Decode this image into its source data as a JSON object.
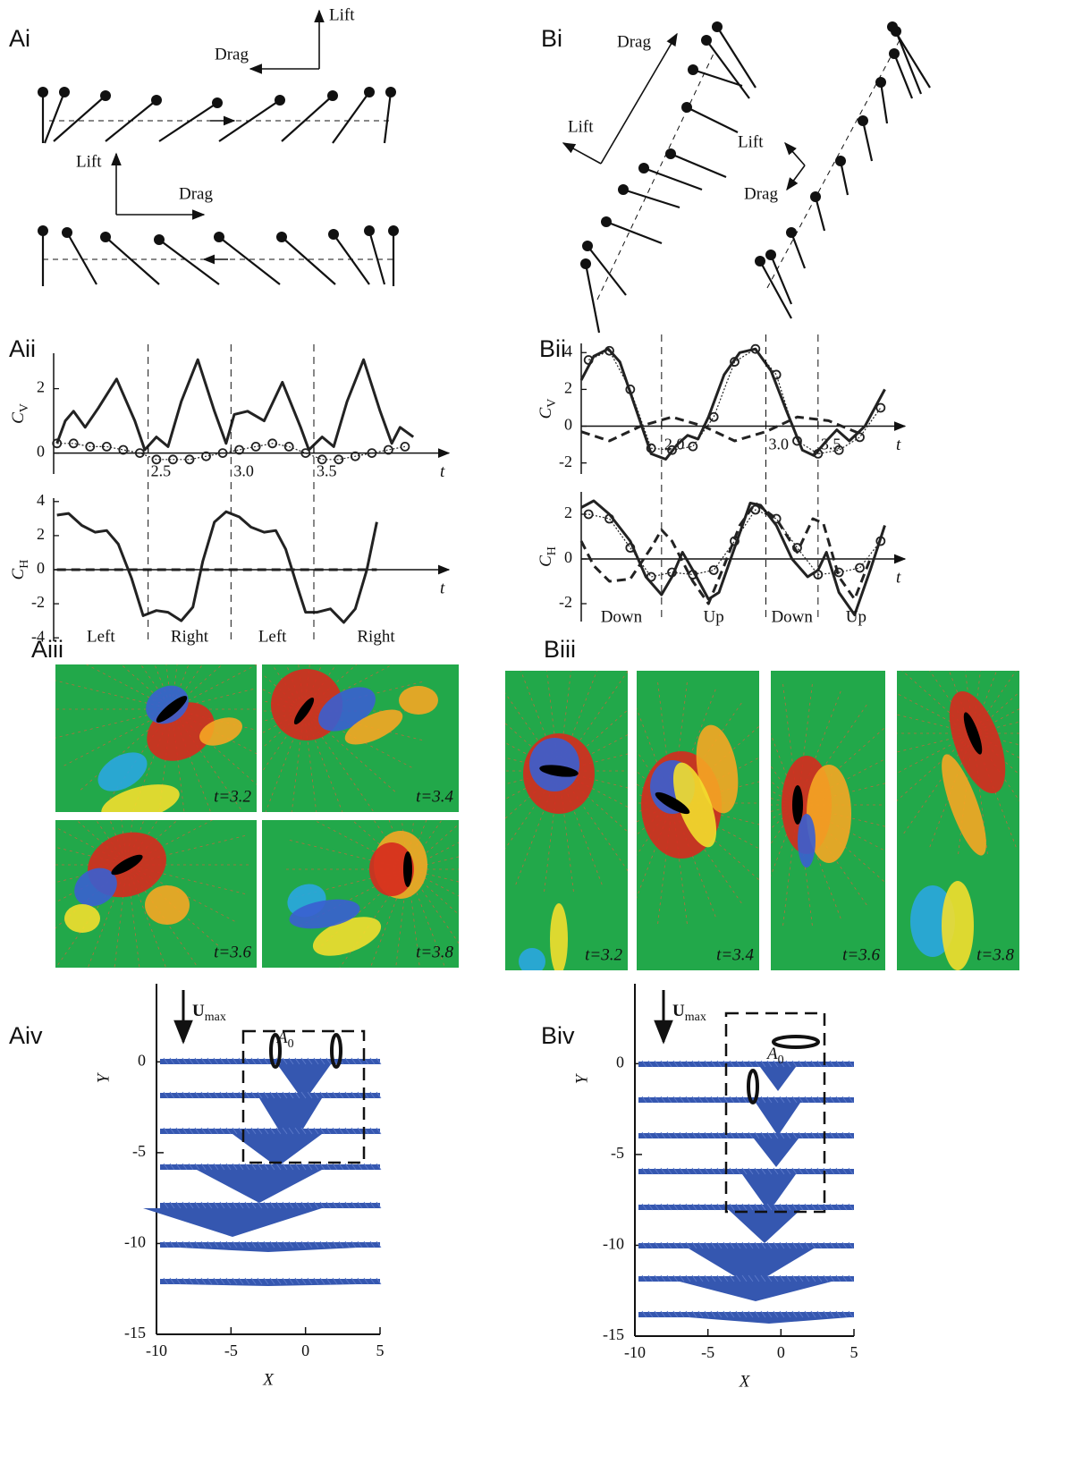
{
  "panel_labels": [
    "Ai",
    "Bi",
    "Aii",
    "Bii",
    "Aiii",
    "Biii",
    "Aiv",
    "Biv"
  ],
  "diagrams": {
    "Ai": [
      "Lift",
      "Drag",
      "Lift",
      "Drag"
    ],
    "Bi": [
      "Drag",
      "Lift",
      "Lift",
      "Drag"
    ]
  },
  "snapshots": {
    "Aiii": [
      "t=3.2",
      "t=3.4",
      "t=3.6",
      "t=3.8"
    ],
    "Biii": [
      "t=3.2",
      "t=3.4",
      "t=3.6",
      "t=3.8"
    ]
  },
  "chart_data": [
    {
      "type": "line",
      "ylabel": {
        "text": "C",
        "sub": "V"
      },
      "xlabel": "t",
      "xlim": [
        1.93,
        4.25
      ],
      "ylim": [
        -0.65,
        3.1
      ],
      "xticks": [
        2.5,
        {
          "value": 3,
          "label": "3.0"
        },
        3.5
      ],
      "yticks": [
        0,
        2
      ],
      "series": [
        {
          "color": "#222",
          "style": "solid",
          "x": [
            1.95,
            2.0,
            2.05,
            2.12,
            2.2,
            2.31,
            2.42,
            2.48,
            2.55,
            2.62,
            2.7,
            2.8,
            2.9,
            2.97,
            3.02,
            3.1,
            3.2,
            3.31,
            3.42,
            3.47,
            3.55,
            3.62,
            3.7,
            3.8,
            3.9,
            3.97,
            4.02,
            4.1
          ],
          "values": [
            0.3,
            1.0,
            1.3,
            0.8,
            1.4,
            2.3,
            1.0,
            0.1,
            0.5,
            0.2,
            1.6,
            2.9,
            1.3,
            0.3,
            1.2,
            1.3,
            1.0,
            2.2,
            0.8,
            0.1,
            0.5,
            0.2,
            1.6,
            2.9,
            1.3,
            0.3,
            0.8,
            0.5
          ]
        },
        {
          "color": "#222",
          "style": "circles",
          "x": [
            1.95,
            2.05,
            2.15,
            2.25,
            2.35,
            2.45,
            2.55,
            2.65,
            2.75,
            2.85,
            2.95,
            3.05,
            3.15,
            3.25,
            3.35,
            3.45,
            3.55,
            3.65,
            3.75,
            3.85,
            3.95,
            4.05
          ],
          "values": [
            0.3,
            0.3,
            0.2,
            0.2,
            0.1,
            0.0,
            -0.2,
            -0.2,
            -0.2,
            -0.1,
            0.0,
            0.1,
            0.2,
            0.3,
            0.2,
            0.0,
            -0.2,
            -0.2,
            -0.1,
            0.0,
            0.1,
            0.2
          ]
        }
      ]
    },
    {
      "type": "line",
      "ylabel": {
        "text": "C",
        "sub": "H"
      },
      "xlabel": "t",
      "xlim": [
        1.93,
        4.25
      ],
      "ylim": [
        -4.2,
        4.2
      ],
      "yticks": [
        -4,
        -2,
        0,
        2,
        4
      ],
      "regions": [
        "Left",
        "Right",
        "Left",
        "Right"
      ],
      "series": [
        {
          "color": "#222",
          "style": "solid",
          "x": [
            1.95,
            2.02,
            2.1,
            2.18,
            2.25,
            2.32,
            2.4,
            2.47,
            2.55,
            2.62,
            2.7,
            2.77,
            2.83,
            2.9,
            2.97,
            3.05,
            3.12,
            3.2,
            3.27,
            3.33,
            3.4,
            3.45,
            3.52,
            3.6,
            3.68,
            3.75,
            3.82,
            3.88
          ],
          "values": [
            3.2,
            3.3,
            2.6,
            2.2,
            2.3,
            1.5,
            -0.5,
            -2.7,
            -2.4,
            -2.5,
            -3.0,
            -2.2,
            0.5,
            2.8,
            3.4,
            3.1,
            2.5,
            2.2,
            2.3,
            1.2,
            -1.0,
            -2.5,
            -2.5,
            -2.3,
            -3.1,
            -2.3,
            0.0,
            2.8
          ]
        },
        {
          "color": "#222",
          "style": "dashed",
          "x": [
            1.95,
            2.5,
            3.0,
            3.5,
            3.88
          ],
          "values": [
            0,
            0,
            0,
            0,
            0
          ]
        }
      ]
    },
    {
      "type": "line",
      "ylabel": {
        "text": "C",
        "sub": "V"
      },
      "xlabel": "t",
      "xlim": [
        1.23,
        4.23
      ],
      "ylim": [
        -2.6,
        4.5
      ],
      "xticks": [
        {
          "value": 2,
          "label": "2.0"
        },
        {
          "value": 3,
          "label": "3.0"
        },
        3.5
      ],
      "yticks": [
        -2,
        0,
        2,
        4
      ],
      "series": [
        {
          "color": "#222",
          "style": "solid",
          "x": [
            1.23,
            1.35,
            1.49,
            1.6,
            1.75,
            1.9,
            2.04,
            2.15,
            2.25,
            2.35,
            2.45,
            2.6,
            2.75,
            2.9,
            3.05,
            3.2,
            3.35,
            3.46,
            3.58,
            3.68,
            3.8,
            3.95,
            4.14
          ],
          "values": [
            2.5,
            3.8,
            4.2,
            3.5,
            1.0,
            -1.5,
            -1.8,
            -1.0,
            -0.5,
            -0.7,
            0.5,
            2.8,
            4.0,
            4.2,
            3.0,
            0.8,
            -1.3,
            -1.6,
            -0.8,
            -0.2,
            -0.8,
            0.0,
            2.0
          ]
        },
        {
          "color": "#222",
          "style": "dashed",
          "x": [
            1.23,
            1.5,
            1.8,
            2.1,
            2.4,
            2.7,
            3.0,
            3.3,
            3.6,
            3.9
          ],
          "values": [
            -0.3,
            -0.8,
            0.0,
            0.5,
            0.0,
            -0.8,
            -0.3,
            0.5,
            0.3,
            -0.4
          ]
        },
        {
          "color": "#222",
          "style": "circles",
          "x": [
            1.3,
            1.5,
            1.7,
            1.9,
            2.1,
            2.3,
            2.5,
            2.7,
            2.9,
            3.1,
            3.3,
            3.5,
            3.7,
            3.9,
            4.1
          ],
          "values": [
            3.6,
            4.1,
            2.0,
            -1.2,
            -1.3,
            -1.1,
            0.5,
            3.5,
            4.2,
            2.8,
            -0.8,
            -1.5,
            -1.3,
            -0.6,
            1.0
          ]
        }
      ]
    },
    {
      "type": "line",
      "ylabel": {
        "text": "C",
        "sub": "H"
      },
      "xlabel": "t",
      "xlim": [
        1.23,
        4.23
      ],
      "ylim": [
        -2.8,
        3.0
      ],
      "yticks": [
        -2,
        0,
        2
      ],
      "regions": [
        "Down",
        "Up",
        "Down",
        "Up"
      ],
      "series": [
        {
          "color": "#222",
          "style": "solid",
          "x": [
            1.23,
            1.35,
            1.5,
            1.7,
            1.85,
            2.0,
            2.1,
            2.2,
            2.3,
            2.45,
            2.55,
            2.7,
            2.85,
            2.95,
            3.1,
            3.25,
            3.4,
            3.5,
            3.58,
            3.7,
            3.85,
            4.0,
            4.14
          ],
          "values": [
            2.3,
            2.6,
            2.0,
            0.8,
            -0.8,
            -1.6,
            -0.8,
            0.3,
            -0.5,
            -1.8,
            -1.5,
            0.5,
            2.5,
            2.4,
            1.5,
            0.0,
            -0.8,
            -0.5,
            0.3,
            -1.5,
            -2.5,
            -0.5,
            1.5
          ]
        },
        {
          "color": "#222",
          "style": "dashed",
          "x": [
            1.23,
            1.35,
            1.5,
            1.7,
            1.9,
            2.0,
            2.1,
            2.3,
            2.45,
            2.6,
            2.75,
            2.9,
            3.1,
            3.3,
            3.45,
            3.55,
            3.7,
            3.85,
            4.0
          ],
          "values": [
            0.8,
            -0.3,
            -1.0,
            -0.9,
            0.5,
            1.3,
            0.8,
            -1.0,
            -2.0,
            -0.3,
            1.5,
            2.5,
            1.8,
            0.3,
            1.8,
            1.6,
            -0.8,
            -1.8,
            0.0
          ]
        },
        {
          "color": "#222",
          "style": "circles",
          "x": [
            1.3,
            1.5,
            1.7,
            1.9,
            2.1,
            2.3,
            2.5,
            2.7,
            2.9,
            3.1,
            3.3,
            3.5,
            3.7,
            3.9,
            4.1
          ],
          "values": [
            2.0,
            1.8,
            0.5,
            -0.8,
            -0.6,
            -0.7,
            -0.5,
            0.8,
            2.2,
            1.8,
            0.5,
            -0.7,
            -0.6,
            -0.4,
            0.8
          ]
        }
      ]
    },
    {
      "type": "quiver",
      "xlabel": "X",
      "ylabel": "Y",
      "xlim": [
        -10,
        5
      ],
      "ylim": [
        -15,
        4.3
      ],
      "xticks": [
        -10,
        -5,
        0,
        5
      ],
      "yticks": [
        0,
        -5,
        -10,
        -15
      ],
      "annotations": {
        "arrow": {
          "text": "U",
          "sub": "max"
        },
        "region": {
          "text": "A",
          "sub": "0"
        }
      }
    },
    {
      "type": "quiver",
      "xlabel": "X",
      "ylabel": "Y",
      "xlim": [
        -10,
        5
      ],
      "ylim": [
        -15,
        4.4
      ],
      "xticks": [
        -10,
        -5,
        0,
        5
      ],
      "yticks": [
        0,
        -5,
        -10,
        -15
      ],
      "annotations": {
        "arrow": {
          "text": "U",
          "sub": "max"
        },
        "region": {
          "text": "A",
          "sub": "0"
        }
      }
    }
  ]
}
